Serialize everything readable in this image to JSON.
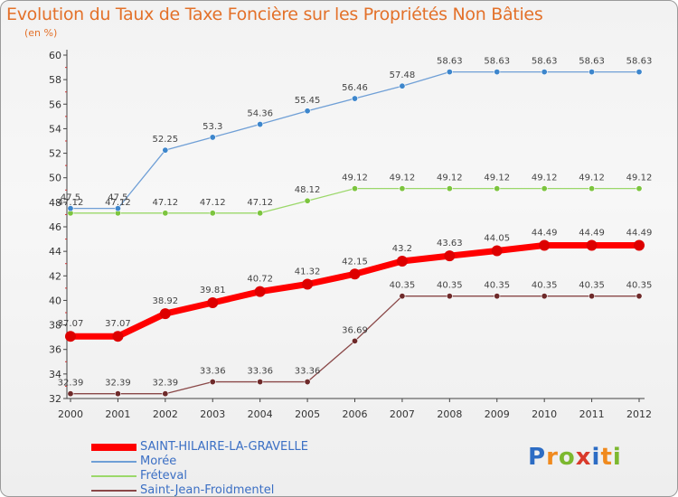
{
  "header": {
    "title": "Evolution du Taux de Taxe Foncière sur les Propriétés Non Bâties",
    "unit": "(en %)"
  },
  "logo": {
    "letters": [
      "P",
      "r",
      "o",
      "x",
      "i",
      "t",
      "i"
    ],
    "colors": [
      "#2c6cc4",
      "#f08a1e",
      "#7cb82f",
      "#d93a2b",
      "#2c6cc4",
      "#f08a1e",
      "#7cb82f"
    ]
  },
  "chart_data": {
    "type": "line",
    "title": "Evolution du Taux de Taxe Foncière sur les Propriétés Non Bâties",
    "ylabel": "(en %)",
    "xlabel": "",
    "x": [
      "2000",
      "2001",
      "2002",
      "2003",
      "2004",
      "2005",
      "2006",
      "2007",
      "2008",
      "2009",
      "2010",
      "2011",
      "2012"
    ],
    "ylim": [
      32,
      60
    ],
    "yticks": [
      32,
      34,
      36,
      38,
      40,
      42,
      44,
      46,
      48,
      50,
      52,
      54,
      56,
      58,
      60
    ],
    "grid": false,
    "legend_position": "bottom-left",
    "series": [
      {
        "name": "SAINT-HILAIRE-LA-GRAVELLE",
        "color": "#ff0000",
        "marker": "#dd0000",
        "thick": true,
        "values": [
          37.07,
          37.07,
          38.92,
          39.81,
          40.72,
          41.32,
          42.15,
          43.2,
          43.63,
          44.05,
          44.49,
          44.49,
          44.49
        ],
        "labels": [
          "37.07",
          "37.07",
          "38.92",
          "39.81",
          "40.72",
          "41.32",
          "42.15",
          "43.2",
          "43.63",
          "44.05",
          "44.49",
          "44.49",
          "44.49"
        ]
      },
      {
        "name": "Morée",
        "color": "#6f9fd6",
        "marker": "#3d86cc",
        "thick": false,
        "values": [
          47.5,
          47.5,
          52.25,
          53.3,
          54.36,
          55.45,
          56.46,
          57.48,
          58.63,
          58.63,
          58.63,
          58.63,
          58.63
        ],
        "labels": [
          "47.5",
          "47.5",
          "52.25",
          "53.3",
          "54.36",
          "55.45",
          "56.46",
          "57.48",
          "58.63",
          "58.63",
          "58.63",
          "58.63",
          "58.63"
        ]
      },
      {
        "name": "Fréteval",
        "color": "#9bd86a",
        "marker": "#7cc43e",
        "thick": false,
        "values": [
          47.12,
          47.12,
          47.12,
          47.12,
          47.12,
          48.12,
          49.12,
          49.12,
          49.12,
          49.12,
          49.12,
          49.12,
          49.12
        ],
        "labels": [
          "47.12",
          "47.12",
          "47.12",
          "47.12",
          "47.12",
          "48.12",
          "49.12",
          "49.12",
          "49.12",
          "49.12",
          "49.12",
          "49.12",
          "49.12"
        ]
      },
      {
        "name": "Saint-Jean-Froidmentel",
        "color": "#8a4848",
        "marker": "#6e2a2a",
        "thick": false,
        "values": [
          32.39,
          32.39,
          32.39,
          33.36,
          33.36,
          33.36,
          36.69,
          40.35,
          40.35,
          40.35,
          40.35,
          40.35,
          40.35
        ],
        "labels": [
          "32.39",
          "32.39",
          "32.39",
          "33.36",
          "33.36",
          "33.36",
          "36.69",
          "40.35",
          "40.35",
          "40.35",
          "40.35",
          "40.35",
          "40.35"
        ]
      }
    ]
  }
}
